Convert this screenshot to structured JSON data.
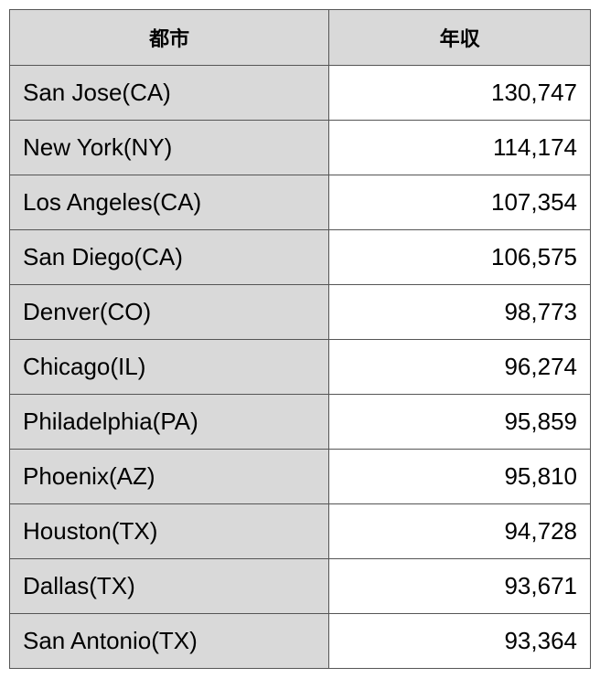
{
  "table": {
    "type": "table",
    "columns": [
      {
        "label": "都市",
        "key": "city",
        "width_pct": 55,
        "align": "left",
        "bg_color": "#d9d9d9"
      },
      {
        "label": "年収",
        "key": "income",
        "width_pct": 45,
        "align": "right",
        "bg_color": "#ffffff"
      }
    ],
    "header_bg_color": "#d9d9d9",
    "header_fontsize": 22,
    "cell_fontsize": 26,
    "border_color": "#555555",
    "text_color": "#000000",
    "rows": [
      {
        "city": "San Jose(CA)",
        "income": "130,747"
      },
      {
        "city": "New York(NY)",
        "income": "114,174"
      },
      {
        "city": "Los Angeles(CA)",
        "income": "107,354"
      },
      {
        "city": "San Diego(CA)",
        "income": "106,575"
      },
      {
        "city": "Denver(CO)",
        "income": "98,773"
      },
      {
        "city": "Chicago(IL)",
        "income": "96,274"
      },
      {
        "city": "Philadelphia(PA)",
        "income": "95,859"
      },
      {
        "city": "Phoenix(AZ)",
        "income": "95,810"
      },
      {
        "city": "Houston(TX)",
        "income": "94,728"
      },
      {
        "city": "Dallas(TX)",
        "income": "93,671"
      },
      {
        "city": "San Antonio(TX)",
        "income": "93,364"
      }
    ]
  }
}
